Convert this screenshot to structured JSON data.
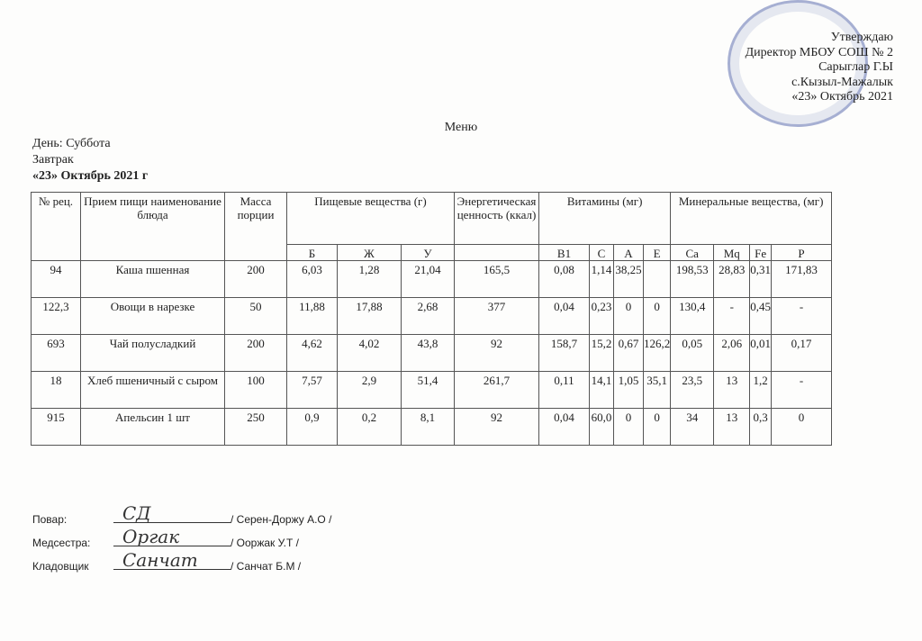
{
  "approval": {
    "lines": [
      "Утверждаю",
      "Директор МБОУ СОШ № 2",
      "Сарыглар Г.Ы",
      "с.Кызыл-Мажалык",
      "«23» Октябрь  2021"
    ]
  },
  "title": "Меню",
  "day": "День: Суббота",
  "meal": "Завтрак",
  "date": "«23» Октябрь 2021 г",
  "table": {
    "headers": {
      "num": "№ рец.",
      "name": "Прием пищи  наименование блюда",
      "mass": "Масса порции",
      "nutr": "Пищевые вещества (г)",
      "energy": "Энергетическая ценность  (ккал)",
      "vit": "Витамины (мг)",
      "min": "Минеральные вещества, (мг)"
    },
    "sub": [
      "Б",
      "Ж",
      "У",
      "",
      "В1",
      "С",
      "А",
      "Е",
      "Ca",
      "Mq",
      "Fe",
      "P"
    ],
    "rows": [
      [
        "94",
        "Каша пшенная",
        "200",
        "6,03",
        "1,28",
        "21,04",
        "165,5",
        "0,08",
        "1,14",
        "38,25",
        "",
        "198,53",
        "28,83",
        "0,31",
        "171,83"
      ],
      [
        "122,3",
        "Овощи в нарезке",
        "50",
        "11,88",
        "17,88",
        "2,68",
        "377",
        "0,04",
        "0,23",
        "0",
        "0",
        "130,4",
        "-",
        "0,45",
        "-"
      ],
      [
        "693",
        "Чай полусладкий",
        "200",
        "4,62",
        "4,02",
        "43,8",
        "92",
        "158,7",
        "15,2",
        "0,67",
        "126,2",
        "0,05",
        "2,06",
        "0,01",
        "0,17"
      ],
      [
        "18",
        "Хлеб пшеничный с сыром",
        "100",
        "7,57",
        "2,9",
        "51,4",
        "261,7",
        "0,11",
        "14,1",
        "1,05",
        "35,1",
        "23,5",
        "13",
        "1,2",
        "-"
      ],
      [
        "915",
        "Апельсин  1 шт",
        "250",
        "0,9",
        "0,2",
        "8,1",
        "92",
        "0,04",
        "60,0",
        "0",
        "0",
        "34",
        "13",
        "0,3",
        "0"
      ]
    ]
  },
  "signatures": [
    {
      "role": "Повар:",
      "name": "/ Серен-Доржу А.О /",
      "sign": "СД"
    },
    {
      "role": "Медсестра:",
      "name": "/ Ооржак У.Т /",
      "sign": "Оргак"
    },
    {
      "role": "Кладовщик",
      "name": "/ Санчат Б.М /",
      "sign": "Санчат"
    }
  ]
}
